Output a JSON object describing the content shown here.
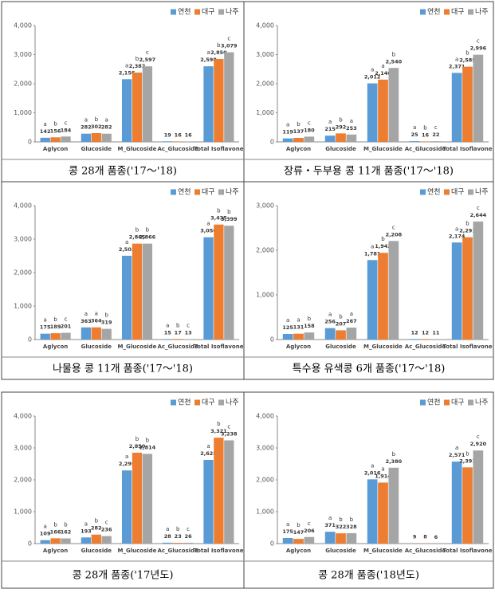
{
  "chart_data": [
    {
      "type": "bar",
      "caption": "콩 28개 품종('17～'18)",
      "categories": [
        "Aglycon",
        "Glucoside",
        "M_Glucoside",
        "Ac_Glucoside",
        "Total Isoflavone"
      ],
      "ylim": [
        0,
        4000
      ],
      "yticks": [
        0,
        {
          "value": 1000,
          "label": "1,000"
        },
        {
          "value": 2000,
          "label": "2,000"
        },
        {
          "value": 3000,
          "label": "3,000"
        },
        {
          "value": 4000,
          "label": "4,000"
        }
      ],
      "series": [
        {
          "name": "연천",
          "color": "#5b9bd5",
          "values": [
            142,
            282,
            2156,
            19,
            2598
          ],
          "value_labels": [
            "142",
            "282",
            "2,156",
            "19",
            "2,598"
          ],
          "letters": [
            "a",
            "a",
            "a",
            null,
            "a"
          ]
        },
        {
          "name": "대구",
          "color": "#ed7d31",
          "values": [
            156,
            302,
            2382,
            16,
            2850
          ],
          "value_labels": [
            "156",
            "302",
            "2,382",
            "16",
            "2,850"
          ],
          "letters": [
            "b",
            "b",
            "b",
            null,
            "b"
          ]
        },
        {
          "name": "나주",
          "color": "#a5a5a5",
          "values": [
            184,
            282,
            2597,
            16,
            3079
          ],
          "value_labels": [
            "184",
            "282",
            "2,597",
            "16",
            "3,079"
          ],
          "letters": [
            "c",
            "a",
            "c",
            null,
            "c"
          ]
        }
      ]
    },
    {
      "type": "bar",
      "caption": "장류‧두부용 콩 11개 품종('17～'18)",
      "categories": [
        "Aglycon",
        "Glucoside",
        "M_Glucoside",
        "Ac_Glucoside",
        "Total Isoflavone"
      ],
      "ylim": [
        0,
        4000
      ],
      "yticks": [
        0,
        {
          "value": 1000,
          "label": "1,000"
        },
        {
          "value": 2000,
          "label": "2,000"
        },
        {
          "value": 3000,
          "label": "3,000"
        },
        {
          "value": 4000,
          "label": "4,000"
        }
      ],
      "series": [
        {
          "name": "연천",
          "color": "#5b9bd5",
          "values": [
            119,
            215,
            2012,
            25,
            2371
          ],
          "value_labels": [
            "119",
            "215",
            "2,012",
            "25",
            "2,371"
          ],
          "letters": [
            "a",
            "a",
            "a",
            "a",
            "a"
          ]
        },
        {
          "name": "대구",
          "color": "#ed7d31",
          "values": [
            137,
            292,
            2140,
            16,
            2585
          ],
          "value_labels": [
            "137",
            "292",
            "2,140",
            "16",
            "2,585"
          ],
          "letters": [
            "b",
            "b",
            "a",
            "b",
            "b"
          ]
        },
        {
          "name": "나주",
          "color": "#a5a5a5",
          "values": [
            180,
            253,
            2540,
            22,
            2996
          ],
          "value_labels": [
            "180",
            "253",
            "2,540",
            "22",
            "2,996"
          ],
          "letters": [
            "c",
            "a",
            "b",
            "c",
            "c"
          ]
        }
      ]
    },
    {
      "type": "bar",
      "caption": "나물용 콩 11개 품종('17～'18)",
      "categories": [
        "Aglycon",
        "Glucoside",
        "M_Glucoside",
        "Ac_Glucoside",
        "Total Isoflavone"
      ],
      "ylim": [
        0,
        4000
      ],
      "yticks": [
        0,
        {
          "value": 1000,
          "label": "1,000"
        },
        {
          "value": 2000,
          "label": "2,000"
        },
        {
          "value": 3000,
          "label": "3,000"
        },
        {
          "value": 4000,
          "label": "4,000"
        }
      ],
      "series": [
        {
          "name": "연천",
          "color": "#5b9bd5",
          "values": [
            175,
            363,
            2503,
            15,
            3056
          ],
          "value_labels": [
            "175",
            "363",
            "2,503",
            "15",
            "3,056"
          ],
          "letters": [
            "a",
            "a",
            "a",
            "a",
            "a"
          ]
        },
        {
          "name": "대구",
          "color": "#ed7d31",
          "values": [
            189,
            364,
            2865,
            17,
            3435
          ],
          "value_labels": [
            "189",
            "364",
            "2,865",
            "17",
            "3,435"
          ],
          "letters": [
            "b",
            "a",
            "b",
            "b",
            "b"
          ]
        },
        {
          "name": "나주",
          "color": "#a5a5a5",
          "values": [
            201,
            319,
            2866,
            13,
            3399
          ],
          "value_labels": [
            "201",
            "319",
            "2,866",
            "13",
            "3,399"
          ],
          "letters": [
            "c",
            "b",
            "b",
            "c",
            "b"
          ]
        }
      ]
    },
    {
      "type": "bar",
      "caption": "특수용 유색콩 6개 품종('17～'18)",
      "categories": [
        "Aglycon",
        "Glucoside",
        "M_Glucoside",
        "Ac_Glucoside",
        "Total Isoflavone"
      ],
      "ylim": [
        0,
        3000
      ],
      "yticks": [
        0,
        {
          "value": 1000,
          "label": "1,000"
        },
        {
          "value": 2000,
          "label": "2,000"
        },
        {
          "value": 3000,
          "label": "3,000"
        }
      ],
      "series": [
        {
          "name": "연천",
          "color": "#5b9bd5",
          "values": [
            125,
            256,
            1781,
            12,
            2174
          ],
          "value_labels": [
            "125",
            "256",
            "1,781",
            "12",
            "2,174"
          ],
          "letters": [
            "a",
            "a",
            "a",
            null,
            "a"
          ]
        },
        {
          "name": "대구",
          "color": "#ed7d31",
          "values": [
            131,
            207,
            1942,
            12,
            2291
          ],
          "value_labels": [
            "131",
            "207",
            "1,942",
            "12",
            "2,291"
          ],
          "letters": [
            "a",
            "b",
            "b",
            null,
            "b"
          ]
        },
        {
          "name": "나주",
          "color": "#a5a5a5",
          "values": [
            158,
            267,
            2208,
            11,
            2644
          ],
          "value_labels": [
            "158",
            "267",
            "2,208",
            "11",
            "2,644"
          ],
          "letters": [
            "b",
            "a",
            "c",
            null,
            "c"
          ]
        }
      ]
    },
    {
      "type": "bar",
      "caption": "콩 28개 품종('17년도)",
      "categories": [
        "Aglycon",
        "Glucoside",
        "M_Glucoside",
        "Ac_Glucoside",
        "Total Isoflavone"
      ],
      "ylim": [
        0,
        4000
      ],
      "yticks": [
        0,
        {
          "value": 1000,
          "label": "1,000"
        },
        {
          "value": 2000,
          "label": "2,000"
        },
        {
          "value": 3000,
          "label": "3,000"
        },
        {
          "value": 4000,
          "label": "4,000"
        }
      ],
      "series": [
        {
          "name": "연천",
          "color": "#5b9bd5",
          "values": [
            109,
            193,
            2295,
            28,
            2625
          ],
          "value_labels": [
            "109",
            "193",
            "2,295",
            "28",
            "2,625"
          ],
          "letters": [
            "a",
            "a",
            "a",
            "a",
            "a"
          ]
        },
        {
          "name": "대구",
          "color": "#ed7d31",
          "values": [
            166,
            282,
            2850,
            23,
            3321
          ],
          "value_labels": [
            "166",
            "282",
            "2,850",
            "23",
            "3,321"
          ],
          "letters": [
            "b",
            "b",
            "b",
            "b",
            "b"
          ]
        },
        {
          "name": "나주",
          "color": "#a5a5a5",
          "values": [
            162,
            236,
            2814,
            26,
            3238
          ],
          "value_labels": [
            "162",
            "236",
            "2,814",
            "26",
            "3,238"
          ],
          "letters": [
            "b",
            "c",
            "b",
            "c",
            "c"
          ]
        }
      ]
    },
    {
      "type": "bar",
      "caption": "콩 28개 품종('18년도)",
      "categories": [
        "Aglycon",
        "Glucoside",
        "M_Glucoside",
        "Ac_Glucoside",
        "Total Isoflavone"
      ],
      "ylim": [
        0,
        4000
      ],
      "yticks": [
        0,
        {
          "value": 1000,
          "label": "1,000"
        },
        {
          "value": 2000,
          "label": "2,000"
        },
        {
          "value": 3000,
          "label": "3,000"
        },
        {
          "value": 4000,
          "label": "4,000"
        }
      ],
      "series": [
        {
          "name": "연천",
          "color": "#5b9bd5",
          "values": [
            175,
            371,
            2016,
            9,
            2571
          ],
          "value_labels": [
            "175",
            "371",
            "2,016",
            "9",
            "2,571"
          ],
          "letters": [
            "a",
            "a",
            "a",
            null,
            "a"
          ]
        },
        {
          "name": "대구",
          "color": "#ed7d31",
          "values": [
            147,
            322,
            1914,
            8,
            2391
          ],
          "value_labels": [
            "147",
            "322",
            "1,914",
            "8",
            "2,391"
          ],
          "letters": [
            "b",
            "b",
            "a",
            null,
            "b"
          ]
        },
        {
          "name": "나주",
          "color": "#a5a5a5",
          "values": [
            206,
            328,
            2380,
            6,
            2920
          ],
          "value_labels": [
            "206",
            "328",
            "2,380",
            "6",
            "2,920"
          ],
          "letters": [
            "c",
            "b",
            "b",
            null,
            "c"
          ]
        }
      ]
    }
  ]
}
